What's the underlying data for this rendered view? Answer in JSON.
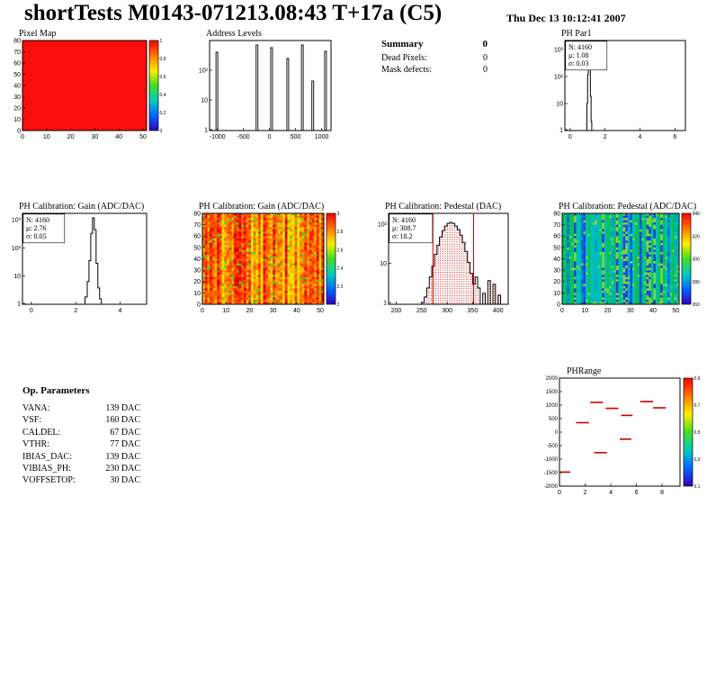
{
  "header": {
    "title": "shortTests M0143-071213.08:43 T+17a (C5)",
    "date": "Thu Dec 13 10:12:41 2007"
  },
  "summary": {
    "title": "Summary",
    "total": "0",
    "rows": [
      {
        "label": "Dead Pixels:",
        "value": "0"
      },
      {
        "label": "Mask defects:",
        "value": "0"
      }
    ]
  },
  "op_parameters": {
    "title": "Op. Parameters",
    "rows": [
      {
        "label": "VANA:",
        "value": "139 DAC"
      },
      {
        "label": "VSF:",
        "value": "160 DAC"
      },
      {
        "label": "CALDEL:",
        "value": "67 DAC"
      },
      {
        "label": "VTHR:",
        "value": "77 DAC"
      },
      {
        "label": "IBIAS_DAC:",
        "value": "139 DAC"
      },
      {
        "label": "VIBIAS_PH:",
        "value": "230 DAC"
      },
      {
        "label": "VOFFSETOP:",
        "value": "30 DAC"
      }
    ]
  },
  "colorbar_palette": [
    "#ff0000",
    "#ff7700",
    "#ffee00",
    "#44dd22",
    "#00ccbb",
    "#0066ff",
    "#3300bb"
  ],
  "chart_data": [
    {
      "id": "pixel-map",
      "type": "heatmap_flat",
      "title": "Pixel Map",
      "frame": [
        25,
        45,
        138,
        100
      ],
      "xlim": [
        0,
        51.5
      ],
      "xticks": [
        0,
        10,
        20,
        30,
        40,
        50
      ],
      "yticks": [
        0,
        10,
        20,
        30,
        40,
        50,
        60,
        70,
        80
      ],
      "fill": "#fa0d0d",
      "colorbar": {
        "x": 166,
        "w": 10,
        "labels": [
          "1",
          "0.8",
          "0.6",
          "0.4",
          "0.2",
          "0"
        ]
      }
    },
    {
      "id": "address-levels",
      "type": "spikes",
      "title": "Address Levels",
      "frame": [
        233,
        45,
        135,
        100
      ],
      "xlim": [
        -1150,
        1180
      ],
      "xticks": [
        -1000,
        -500,
        0,
        500,
        1000
      ],
      "ylog": [
        {
          "label": "10²",
          "f": 0.33
        },
        {
          "label": "10",
          "f": 0.66
        },
        {
          "label": "1",
          "f": 0.99
        }
      ],
      "spikes": [
        {
          "x": -1010,
          "h": 0.87
        },
        {
          "x": -240,
          "h": 0.95
        },
        {
          "x": 40,
          "h": 0.92
        },
        {
          "x": 350,
          "h": 0.8
        },
        {
          "x": 630,
          "h": 0.95
        },
        {
          "x": 830,
          "h": 0.55
        },
        {
          "x": 1075,
          "h": 0.88
        }
      ]
    },
    {
      "id": "ph-par1",
      "type": "hist",
      "title": "PH Par1",
      "frame": [
        628,
        45,
        134,
        100
      ],
      "xlim": [
        -0.3,
        6.6
      ],
      "xticks": [
        0,
        2,
        4,
        6
      ],
      "ylog": [
        {
          "label": "10³",
          "f": 0.1
        },
        {
          "label": "10²",
          "f": 0.4
        },
        {
          "label": "10",
          "f": 0.7
        },
        {
          "label": "1",
          "f": 0.99
        }
      ],
      "stats": {
        "w": 46,
        "lines": [
          {
            "text": "N: 4160"
          },
          {
            "text": "μ: 1.08"
          },
          {
            "text": "σ: 0.03"
          }
        ]
      },
      "bins": [
        [
          0.88,
          0
        ],
        [
          0.96,
          0.3
        ],
        [
          1.0,
          0.62
        ],
        [
          1.04,
          0.93
        ],
        [
          1.08,
          0.97
        ],
        [
          1.12,
          0.72
        ],
        [
          1.16,
          0.38
        ],
        [
          1.2,
          0.1
        ],
        [
          1.24,
          0
        ]
      ]
    },
    {
      "id": "gain-hist",
      "type": "hist",
      "title": "PH Calibration: Gain (ADC/DAC)",
      "frame": [
        25,
        237,
        138,
        101
      ],
      "xlim": [
        -0.4,
        5.2
      ],
      "xticks": [
        0,
        2,
        4
      ],
      "ylog": [
        {
          "label": "10³",
          "f": 0.07
        },
        {
          "label": "10²",
          "f": 0.38
        },
        {
          "label": "10",
          "f": 0.69
        },
        {
          "label": "1",
          "f": 0.99
        }
      ],
      "stats": {
        "w": 46,
        "lines": [
          {
            "text": "N: 4160"
          },
          {
            "text": "μ: 2.76"
          },
          {
            "text": "σ: 0.05"
          }
        ]
      },
      "bins": [
        [
          2.3,
          0
        ],
        [
          2.42,
          0.08
        ],
        [
          2.52,
          0.25
        ],
        [
          2.6,
          0.48
        ],
        [
          2.68,
          0.78
        ],
        [
          2.76,
          0.95
        ],
        [
          2.84,
          0.82
        ],
        [
          2.92,
          0.45
        ],
        [
          3.0,
          0.18
        ],
        [
          3.08,
          0.06
        ],
        [
          3.16,
          0
        ]
      ]
    },
    {
      "id": "gain-map",
      "type": "heatmap_noise",
      "title": "PH Calibration: Gain (ADC/DAC)",
      "frame": [
        225,
        237,
        135,
        101
      ],
      "xlim": [
        0,
        51.5
      ],
      "xticks": [
        0,
        10,
        20,
        30,
        40,
        50
      ],
      "yticks": [
        0,
        10,
        20,
        30,
        40,
        50,
        60,
        70,
        80
      ],
      "palette": [
        "#dd0000",
        "#ff2200",
        "#ff5500",
        "#ff8800",
        "#ffbb00",
        "#ffdd00",
        "#d8e800",
        "#66c81e"
      ],
      "noise": {
        "seed": 13,
        "ncols": 50,
        "nrows": 40,
        "base_choices": [
          0,
          0,
          0,
          1,
          1,
          2,
          2,
          3,
          4
        ],
        "jitter": 3,
        "speck_p": 0.05,
        "speck_idx": 7
      },
      "colorbar": {
        "x": 363,
        "w": 10,
        "labels": [
          "3",
          "2.8",
          "2.6",
          "2.4",
          "2.2",
          "2"
        ]
      }
    },
    {
      "id": "pedestal-hist",
      "type": "hist_filled",
      "title": "PH Calibration: Pedestal (DAC)",
      "frame": [
        432,
        237,
        133,
        101
      ],
      "xlim": [
        185,
        420
      ],
      "xticks": [
        200,
        250,
        300,
        350,
        400
      ],
      "ylog": [
        {
          "label": "10²",
          "f": 0.12
        },
        {
          "label": "10",
          "f": 0.55
        },
        {
          "label": "1",
          "f": 0.98
        }
      ],
      "stats": {
        "w": 48,
        "lines": [
          {
            "text": "N: 4160"
          },
          {
            "text": "μ: 308.7",
            "color": "#cc0000"
          },
          {
            "text": "σ: 18.2",
            "color": "#cc0000"
          }
        ]
      },
      "redlines": [
        272,
        352
      ],
      "bins": [
        [
          250,
          0.02
        ],
        [
          255,
          0.08
        ],
        [
          260,
          0.18
        ],
        [
          265,
          0.3
        ],
        [
          270,
          0.42
        ],
        [
          275,
          0.55
        ],
        [
          280,
          0.65
        ],
        [
          285,
          0.74
        ],
        [
          290,
          0.81
        ],
        [
          295,
          0.86
        ],
        [
          300,
          0.89
        ],
        [
          305,
          0.9
        ],
        [
          310,
          0.89
        ],
        [
          315,
          0.86
        ],
        [
          320,
          0.82
        ],
        [
          325,
          0.76
        ],
        [
          330,
          0.68
        ],
        [
          335,
          0.58
        ],
        [
          340,
          0.46
        ],
        [
          345,
          0.34
        ],
        [
          350,
          0.22
        ],
        [
          355,
          0.3
        ],
        [
          360,
          0.18
        ],
        [
          365,
          0
        ],
        [
          370,
          0.12
        ],
        [
          375,
          0
        ],
        [
          380,
          0.26
        ],
        [
          385,
          0
        ],
        [
          390,
          0.22
        ],
        [
          395,
          0
        ],
        [
          400,
          0.1
        ],
        [
          405,
          0
        ]
      ]
    },
    {
      "id": "pedestal-map",
      "type": "heatmap_noise",
      "title": "PH Calibration: Pedestal (ADC/DAC)",
      "frame": [
        625,
        237,
        130,
        101
      ],
      "xlim": [
        0,
        51.5
      ],
      "xticks": [
        0,
        10,
        20,
        30,
        40,
        50
      ],
      "yticks": [
        0,
        10,
        20,
        30,
        40,
        50,
        60,
        70,
        80
      ],
      "palette": [
        "#18b848",
        "#00c070",
        "#00c49c",
        "#00bcc4",
        "#0098d4",
        "#0068e0",
        "#2244dd",
        "#7ad838"
      ],
      "noise": {
        "seed": 29,
        "ncols": 50,
        "nrows": 40,
        "base_choices": [
          0,
          0,
          1,
          1,
          2,
          2,
          3,
          4,
          5,
          6
        ],
        "jitter": 2,
        "speck_p": 0.06,
        "speck_idx": 7
      },
      "colorbar": {
        "x": 758,
        "w": 10,
        "labels": [
          "340",
          "320",
          "300",
          "280",
          "260"
        ]
      }
    },
    {
      "id": "ph-range",
      "type": "segments",
      "title": "PHRange",
      "tdx": 8,
      "frame": [
        622,
        420,
        134,
        120
      ],
      "xlim": [
        0,
        9.4
      ],
      "xticks": [
        0,
        2,
        4,
        6,
        8
      ],
      "ylim": [
        -2000,
        2000
      ],
      "yticks_labeled": [
        {
          "v": 2000,
          "label": "2000"
        },
        {
          "v": 1500,
          "label": "1500"
        },
        {
          "v": 1000,
          "label": "1000"
        },
        {
          "v": 500,
          "label": "500"
        },
        {
          "v": 0,
          "label": "0"
        },
        {
          "v": -500,
          "label": "-500"
        },
        {
          "v": -1000,
          "label": "-1000"
        },
        {
          "v": -1500,
          "label": "-1500"
        },
        {
          "v": -2000,
          "label": "-2000"
        }
      ],
      "segments": [
        [
          1.3,
          2.3,
          350
        ],
        [
          2.4,
          3.4,
          1100
        ],
        [
          3.6,
          4.6,
          880
        ],
        [
          4.8,
          5.7,
          620
        ],
        [
          6.3,
          7.3,
          1130
        ],
        [
          7.3,
          8.3,
          900
        ],
        [
          0.05,
          0.85,
          -1480
        ],
        [
          2.7,
          3.7,
          -760
        ],
        [
          4.7,
          5.6,
          -260
        ]
      ],
      "segment_color": "#cc0000",
      "colorbar": {
        "x": 760,
        "w": 10,
        "labels": [
          "0.9",
          "0.7",
          "0.5",
          "0.3",
          "0.1"
        ]
      }
    }
  ]
}
